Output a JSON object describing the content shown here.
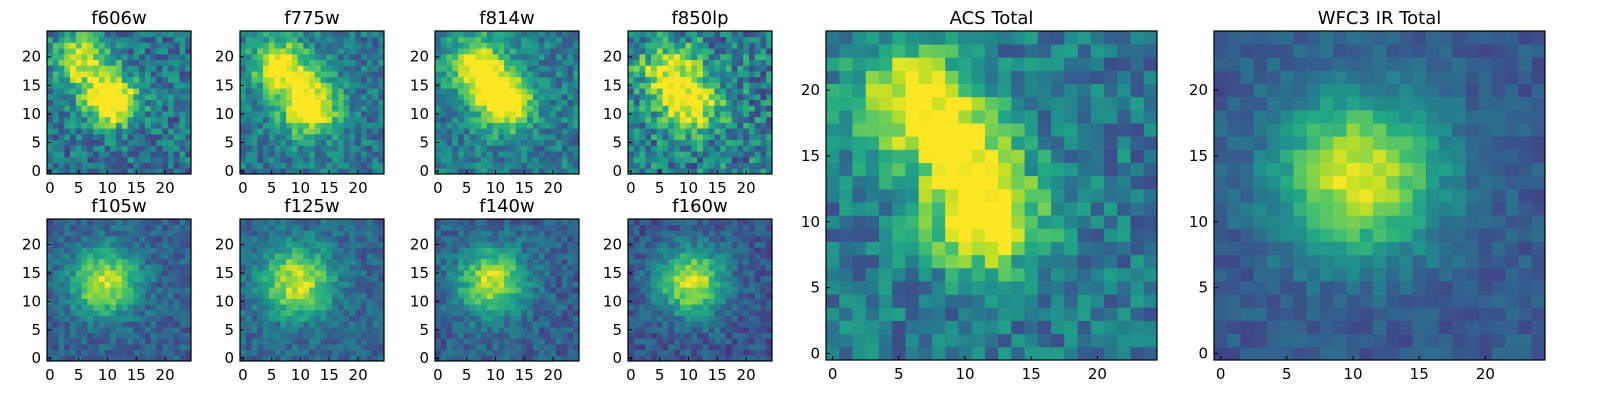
{
  "figure": {
    "description_colormap": "viridis",
    "colors": {
      "low": "#440154",
      "mid": "#21918c",
      "high": "#fde725",
      "frame": "#000000"
    }
  },
  "chart_data": [
    {
      "type": "heatmap",
      "title": "f606w",
      "xticks": [
        0,
        5,
        10,
        15,
        20
      ],
      "yticks": [
        0,
        5,
        10,
        15,
        20
      ],
      "xlim": [
        0,
        25
      ],
      "ylim": [
        0,
        25
      ],
      "grid": false,
      "colormap": "viridis",
      "blobs": [
        {
          "x": 6,
          "y": 20,
          "s": 3.2,
          "a": 0.6
        },
        {
          "x": 11,
          "y": 13,
          "s": 3.2,
          "a": 0.85
        }
      ],
      "base": 0.38,
      "noise": 0.2
    },
    {
      "type": "heatmap",
      "title": "f775w",
      "xticks": [
        0,
        5,
        10,
        15,
        20
      ],
      "yticks": [
        0,
        5,
        10,
        15,
        20
      ],
      "xlim": [
        0,
        25
      ],
      "ylim": [
        0,
        25
      ],
      "grid": false,
      "colormap": "viridis",
      "blobs": [
        {
          "x": 7,
          "y": 19,
          "s": 3.4,
          "a": 0.65
        },
        {
          "x": 12,
          "y": 12,
          "s": 3.4,
          "a": 0.8
        }
      ],
      "base": 0.4,
      "noise": 0.17
    },
    {
      "type": "heatmap",
      "title": "f814w",
      "xticks": [
        0,
        5,
        10,
        15,
        20
      ],
      "yticks": [
        0,
        5,
        10,
        15,
        20
      ],
      "xlim": [
        0,
        25
      ],
      "ylim": [
        0,
        25
      ],
      "grid": false,
      "colormap": "viridis",
      "blobs": [
        {
          "x": 7,
          "y": 19,
          "s": 3.3,
          "a": 0.65
        },
        {
          "x": 12,
          "y": 13,
          "s": 3.3,
          "a": 0.85
        }
      ],
      "base": 0.42,
      "noise": 0.17
    },
    {
      "type": "heatmap",
      "title": "f850lp",
      "xticks": [
        0,
        5,
        10,
        15,
        20
      ],
      "yticks": [
        0,
        5,
        10,
        15,
        20
      ],
      "xlim": [
        0,
        25
      ],
      "ylim": [
        0,
        25
      ],
      "grid": false,
      "colormap": "viridis",
      "blobs": [
        {
          "x": 7,
          "y": 18,
          "s": 3.5,
          "a": 0.55
        },
        {
          "x": 11,
          "y": 12,
          "s": 3.5,
          "a": 0.6
        }
      ],
      "base": 0.42,
      "noise": 0.25
    },
    {
      "type": "heatmap",
      "title": "ACS Total",
      "xticks": [
        0,
        5,
        10,
        15,
        20
      ],
      "yticks": [
        0,
        5,
        10,
        15,
        20
      ],
      "xlim": [
        0,
        25
      ],
      "ylim": [
        0,
        25
      ],
      "grid": false,
      "colormap": "viridis",
      "blobs": [
        {
          "x": 6,
          "y": 20,
          "s": 3.0,
          "a": 0.55
        },
        {
          "x": 10,
          "y": 17,
          "s": 2.8,
          "a": 0.5
        },
        {
          "x": 12,
          "y": 11,
          "s": 3.0,
          "a": 0.75
        }
      ],
      "base": 0.4,
      "noise": 0.17
    },
    {
      "type": "heatmap",
      "title": "f105w",
      "xticks": [
        0,
        5,
        10,
        15,
        20
      ],
      "yticks": [
        0,
        5,
        10,
        15,
        20
      ],
      "xlim": [
        0,
        25
      ],
      "ylim": [
        0,
        25
      ],
      "grid": false,
      "colormap": "viridis",
      "blobs": [
        {
          "x": 10,
          "y": 14,
          "s": 4.2,
          "a": 0.62
        }
      ],
      "base": 0.3,
      "noise": 0.12
    },
    {
      "type": "heatmap",
      "title": "f125w",
      "xticks": [
        0,
        5,
        10,
        15,
        20
      ],
      "yticks": [
        0,
        5,
        10,
        15,
        20
      ],
      "xlim": [
        0,
        25
      ],
      "ylim": [
        0,
        25
      ],
      "grid": false,
      "colormap": "viridis",
      "blobs": [
        {
          "x": 10,
          "y": 14,
          "s": 4.4,
          "a": 0.62
        }
      ],
      "base": 0.32,
      "noise": 0.12
    },
    {
      "type": "heatmap",
      "title": "f140w",
      "xticks": [
        0,
        5,
        10,
        15,
        20
      ],
      "yticks": [
        0,
        5,
        10,
        15,
        20
      ],
      "xlim": [
        0,
        25
      ],
      "ylim": [
        0,
        25
      ],
      "grid": false,
      "colormap": "viridis",
      "blobs": [
        {
          "x": 10,
          "y": 14,
          "s": 4.2,
          "a": 0.62
        }
      ],
      "base": 0.3,
      "noise": 0.12
    },
    {
      "type": "heatmap",
      "title": "f160w",
      "xticks": [
        0,
        5,
        10,
        15,
        20
      ],
      "yticks": [
        0,
        5,
        10,
        15,
        20
      ],
      "xlim": [
        0,
        25
      ],
      "ylim": [
        0,
        25
      ],
      "grid": false,
      "colormap": "viridis",
      "blobs": [
        {
          "x": 11,
          "y": 14,
          "s": 4.0,
          "a": 0.68
        }
      ],
      "base": 0.27,
      "noise": 0.12
    },
    {
      "type": "heatmap",
      "title": "WFC3 IR Total",
      "xticks": [
        0,
        5,
        10,
        15,
        20
      ],
      "yticks": [
        0,
        5,
        10,
        15,
        20
      ],
      "xlim": [
        0,
        25
      ],
      "ylim": [
        0,
        25
      ],
      "grid": false,
      "colormap": "viridis",
      "blobs": [
        {
          "x": 11,
          "y": 14,
          "s": 4.3,
          "a": 0.68
        }
      ],
      "base": 0.28,
      "noise": 0.08
    }
  ]
}
